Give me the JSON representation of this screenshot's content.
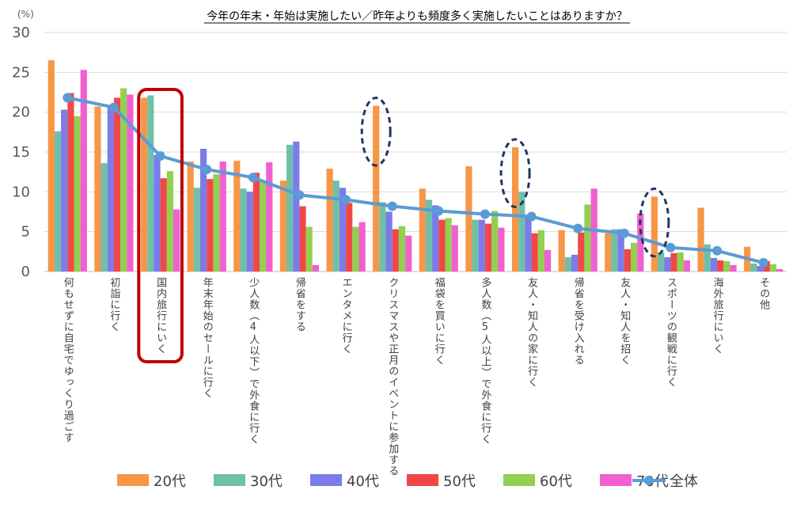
{
  "chart_data": {
    "type": "bar",
    "title": "今年の年末・年始は実施したい／昨年よりも頻度多く実施したいことはありますか？",
    "unit_label": "(%)",
    "ylim": [
      0,
      30
    ],
    "yticks": [
      0,
      5,
      10,
      15,
      20,
      25,
      30
    ],
    "grid": true,
    "legend_position": "bottom",
    "categories": [
      "何もせずに自宅でゆっくり過ごす",
      "初詣に行く",
      "国内旅行にいく",
      "年末年始のセールに行く",
      "少人数（4人以下）で外食に行く",
      "帰省をする",
      "エンタメに行く",
      "クリスマスや正月のイベントに参加する",
      "福袋を買いに行く",
      "多人数（5人以上）で外食に行く",
      "友人・知人の家に行く",
      "帰省を受け入れる",
      "友人・知人を招く",
      "スポーツの観戦に行く",
      "海外旅行にいく",
      "その他"
    ],
    "series": [
      {
        "name": "20代",
        "type": "bar",
        "color": "#F79646",
        "values": [
          26.5,
          20.7,
          21.8,
          13.8,
          13.9,
          11.4,
          12.9,
          20.8,
          10.4,
          13.2,
          15.6,
          5.2,
          4.8,
          9.4,
          8.0,
          3.1
        ]
      },
      {
        "name": "30代",
        "type": "bar",
        "color": "#70C0A8",
        "values": [
          17.6,
          13.6,
          22.1,
          10.5,
          10.4,
          15.9,
          11.4,
          8.7,
          9.0,
          6.5,
          10.0,
          1.8,
          5.3,
          2.4,
          3.4,
          1.0
        ]
      },
      {
        "name": "40代",
        "type": "bar",
        "color": "#7B7BEA",
        "values": [
          20.3,
          20.8,
          14.6,
          15.4,
          10.0,
          16.3,
          10.5,
          7.5,
          8.3,
          6.5,
          6.9,
          2.1,
          5.3,
          1.8,
          1.7,
          0.7
        ]
      },
      {
        "name": "50代",
        "type": "bar",
        "color": "#F04848",
        "values": [
          22.4,
          21.8,
          11.7,
          11.6,
          12.4,
          8.2,
          8.6,
          5.3,
          6.5,
          6.0,
          4.8,
          4.9,
          2.8,
          2.3,
          1.4,
          1.3
        ]
      },
      {
        "name": "60代",
        "type": "bar",
        "color": "#92D050",
        "values": [
          19.5,
          23.0,
          12.6,
          12.2,
          11.3,
          5.6,
          5.6,
          5.7,
          6.7,
          7.6,
          5.2,
          8.4,
          3.6,
          2.4,
          1.3,
          0.9
        ]
      },
      {
        "name": "70代",
        "type": "bar",
        "color": "#F060D0",
        "values": [
          25.3,
          22.2,
          7.8,
          13.8,
          13.7,
          0.8,
          6.2,
          4.5,
          5.8,
          5.5,
          2.7,
          10.4,
          7.3,
          1.4,
          0.8,
          0.3
        ]
      },
      {
        "name": "全体",
        "type": "line",
        "color": "#5B9BD5",
        "values": [
          21.8,
          20.6,
          14.5,
          12.8,
          11.8,
          9.6,
          9.0,
          8.2,
          7.6,
          7.2,
          6.9,
          5.4,
          4.8,
          3.0,
          2.6,
          1.1
        ]
      }
    ],
    "highlights": [
      {
        "shape": "rounded-rect",
        "category": "国内旅行にいく",
        "color": "#C00000"
      },
      {
        "shape": "dashed-ellipse",
        "category": "クリスマスや正月のイベントに参加する",
        "series": "20代",
        "color": "#1F3864"
      },
      {
        "shape": "dashed-ellipse",
        "category": "友人・知人の家に行く",
        "series": "20代",
        "color": "#1F3864"
      },
      {
        "shape": "dashed-ellipse",
        "category": "スポーツの観戦に行く",
        "series": "20代",
        "color": "#1F3864"
      }
    ]
  }
}
